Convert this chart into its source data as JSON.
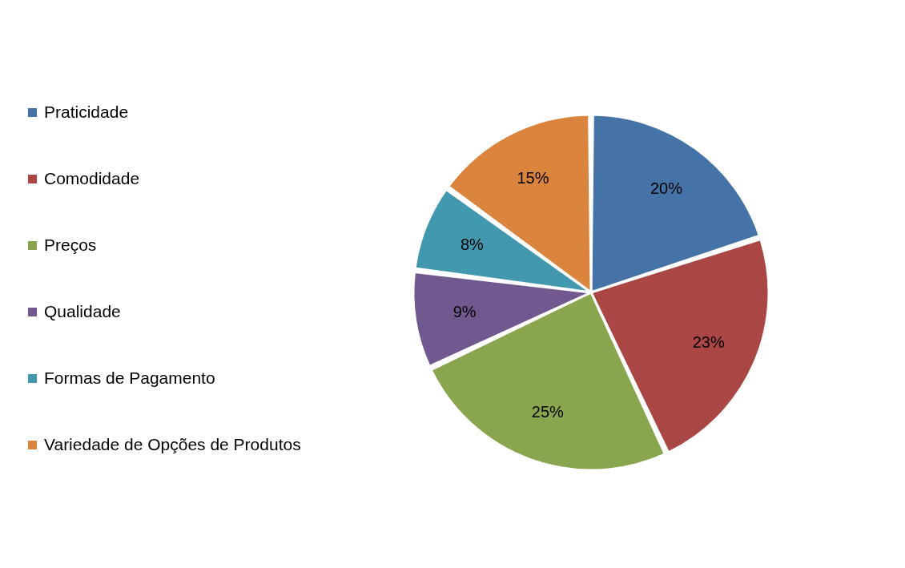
{
  "chart_data": {
    "type": "pie",
    "categories": [
      "Praticidade",
      "Comodidade",
      "Preços",
      "Qualidade",
      "Formas de Pagamento",
      "Variedade de Opções de Produtos"
    ],
    "values": [
      20,
      23,
      25,
      9,
      8,
      15
    ],
    "colors": [
      "#4572a7",
      "#aa4643",
      "#89a54e",
      "#71588f",
      "#4198af",
      "#db843d"
    ],
    "value_labels": [
      "20%",
      "23%",
      "25%",
      "9%",
      "8%",
      "15%"
    ],
    "legend": "left"
  }
}
